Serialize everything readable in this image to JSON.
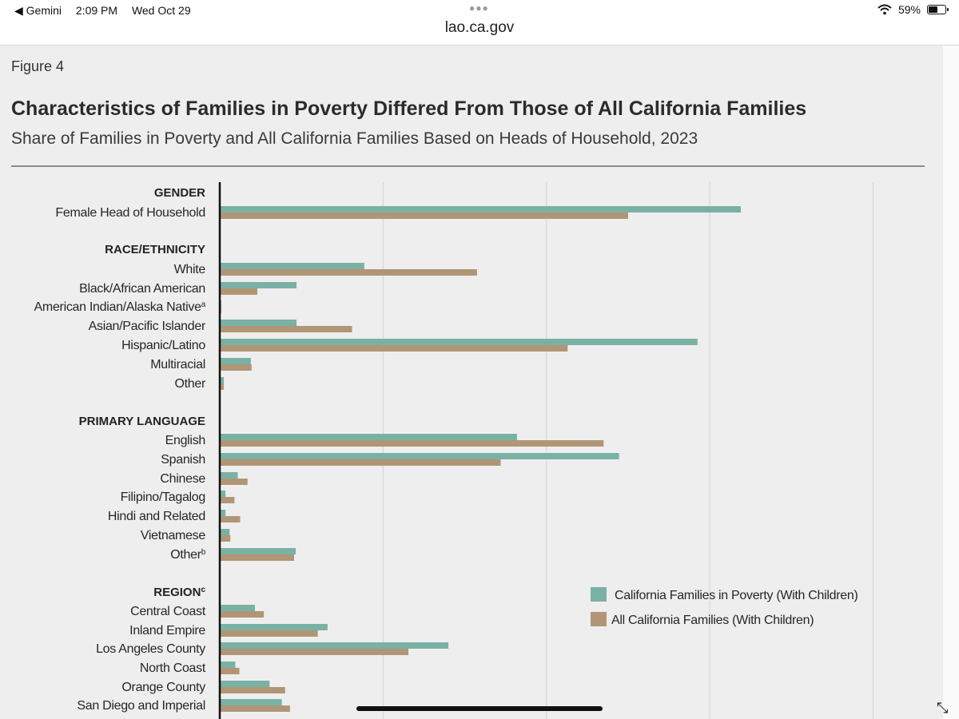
{
  "status_bar": {
    "back_app": "◀ Gemini",
    "time": "2:09 PM",
    "date": "Wed Oct 29",
    "battery": "59%",
    "battery_level": 0.59
  },
  "browser": {
    "url": "lao.ca.gov"
  },
  "figure": {
    "label": "Figure 4",
    "title": "Characteristics of Families in Poverty Differed From Those of All California Families",
    "subtitle": "Share of Families in Poverty and All California Families Based on Heads of Household, 2023"
  },
  "chart_data": {
    "type": "bar",
    "orientation": "horizontal",
    "xlim": [
      0,
      80
    ],
    "grid": true,
    "legend_position": "lower-right",
    "series": [
      {
        "name": "California Families in Poverty (With Children)",
        "color": "#79b1a5"
      },
      {
        "name": "All California Families (With Children)",
        "color": "#b09676"
      }
    ],
    "groups": [
      {
        "header": "GENDER",
        "items": [
          {
            "label": "Female Head of Household",
            "values": [
              63.8,
              50
            ]
          }
        ]
      },
      {
        "header": "RACE/ETHNICITY",
        "items": [
          {
            "label": "White",
            "values": [
              17.7,
              31.5
            ]
          },
          {
            "label": "Black/African American",
            "values": [
              9.4,
              4.6
            ]
          },
          {
            "label": "American Indian/Alaska Native",
            "sup": "a",
            "values": [
              0.2,
              0.2
            ]
          },
          {
            "label": "Asian/Pacific Islander",
            "values": [
              9.4,
              16.2
            ]
          },
          {
            "label": "Hispanic/Latino",
            "values": [
              58.5,
              42.6
            ]
          },
          {
            "label": "Multiracial",
            "values": [
              3.8,
              3.9
            ]
          },
          {
            "label": "Other",
            "values": [
              0.5,
              0.5
            ]
          }
        ]
      },
      {
        "header": "PRIMARY LANGUAGE",
        "items": [
          {
            "label": "English",
            "values": [
              36.4,
              47
            ]
          },
          {
            "label": "Spanish",
            "values": [
              48.9,
              34.4
            ]
          },
          {
            "label": "Chinese",
            "values": [
              2.2,
              3.4
            ]
          },
          {
            "label": "Filipino/Tagalog",
            "values": [
              0.7,
              1.8
            ]
          },
          {
            "label": "Hindi and Related",
            "values": [
              0.7,
              2.5
            ]
          },
          {
            "label": "Vietnamese",
            "values": [
              1.2,
              1.3
            ]
          },
          {
            "label": "Other",
            "sup": "b",
            "values": [
              9.3,
              9.1
            ]
          }
        ]
      },
      {
        "header": "REGION",
        "header_sup": "c",
        "items": [
          {
            "label": "Central Coast",
            "values": [
              4.3,
              5.4
            ]
          },
          {
            "label": "Inland Empire",
            "values": [
              13.2,
              12
            ]
          },
          {
            "label": "Los Angeles County",
            "values": [
              28,
              23.1
            ]
          },
          {
            "label": "North Coast",
            "values": [
              1.9,
              2.4
            ]
          },
          {
            "label": "Orange County",
            "values": [
              6.1,
              8
            ]
          },
          {
            "label": "San Diego and Imperial",
            "values": [
              7.6,
              8.6
            ]
          }
        ]
      }
    ]
  }
}
